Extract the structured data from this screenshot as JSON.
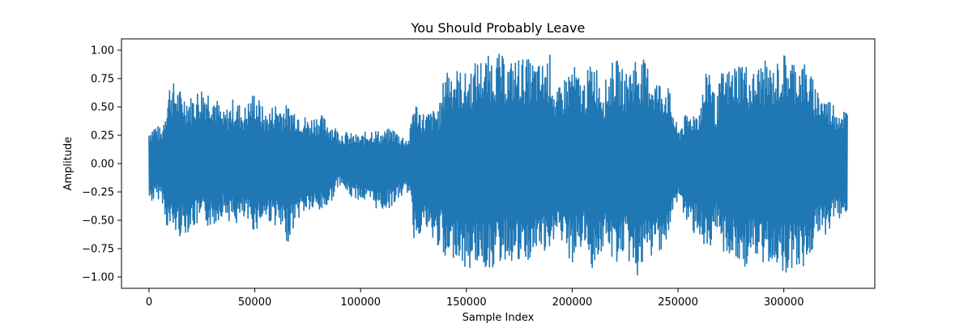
{
  "chart_data": {
    "type": "line",
    "title": "You Should Probably Leave",
    "xlabel": "Sample Index",
    "ylabel": "Amplitude",
    "xlim": [
      -13000,
      343000
    ],
    "ylim": [
      -1.1,
      1.1
    ],
    "x_ticks": [
      0,
      50000,
      100000,
      150000,
      200000,
      250000,
      300000
    ],
    "x_tick_labels": [
      "0",
      "50000",
      "100000",
      "150000",
      "200000",
      "250000",
      "300000"
    ],
    "y_ticks": [
      1.0,
      0.75,
      0.5,
      0.25,
      0.0,
      -0.25,
      -0.5,
      -0.75,
      -1.0
    ],
    "y_tick_labels": [
      "1.00",
      "0.75",
      "0.50",
      "0.25",
      "0.00",
      "−0.25",
      "−0.50",
      "−0.75",
      "−1.00"
    ],
    "grid": false,
    "legend": "none",
    "color": "#1f77b4",
    "series": [
      {
        "x": [
          0,
          3000,
          6000,
          8000,
          10000,
          15000,
          20000,
          25000,
          30000,
          35000,
          40000,
          45000,
          50000,
          55000,
          60000,
          65000,
          70000,
          75000,
          80000,
          85000,
          90000,
          95000,
          100000,
          105000,
          110000,
          115000,
          120000,
          123000,
          125000,
          130000,
          135000,
          138000,
          140000,
          145000,
          150000,
          155000,
          160000,
          165000,
          170000,
          175000,
          180000,
          185000,
          190000,
          192000,
          195000,
          200000,
          205000,
          210000,
          215000,
          220000,
          225000,
          230000,
          235000,
          240000,
          245000,
          250000,
          252000,
          255000,
          260000,
          265000,
          268000,
          270000,
          275000,
          280000,
          285000,
          290000,
          295000,
          300000,
          305000,
          310000,
          315000,
          320000,
          325000,
          330000
        ],
        "y_max": [
          0.32,
          0.36,
          0.3,
          0.55,
          0.75,
          0.65,
          0.6,
          0.7,
          0.67,
          0.45,
          0.58,
          0.5,
          0.66,
          0.45,
          0.55,
          0.52,
          0.5,
          0.4,
          0.45,
          0.38,
          0.3,
          0.27,
          0.25,
          0.32,
          0.28,
          0.32,
          0.25,
          0.23,
          0.58,
          0.45,
          0.48,
          0.55,
          0.9,
          0.85,
          0.8,
          0.92,
          0.95,
          0.98,
          0.9,
          0.95,
          0.92,
          0.88,
          0.98,
          0.6,
          0.72,
          0.9,
          0.72,
          0.95,
          0.7,
          0.95,
          0.8,
          0.97,
          0.9,
          0.75,
          0.72,
          0.3,
          0.4,
          0.45,
          0.5,
          0.95,
          0.5,
          0.8,
          0.85,
          0.95,
          0.8,
          0.92,
          0.85,
          0.98,
          0.93,
          0.9,
          0.7,
          0.6,
          0.52,
          0.48
        ],
        "y_min": [
          -0.35,
          -0.33,
          -0.3,
          -0.55,
          -0.6,
          -0.65,
          -0.58,
          -0.55,
          -0.57,
          -0.45,
          -0.55,
          -0.52,
          -0.6,
          -0.5,
          -0.55,
          -0.72,
          -0.5,
          -0.42,
          -0.45,
          -0.38,
          -0.18,
          -0.3,
          -0.32,
          -0.38,
          -0.42,
          -0.38,
          -0.28,
          -0.25,
          -0.68,
          -0.58,
          -0.75,
          -0.72,
          -0.98,
          -0.8,
          -0.97,
          -0.88,
          -0.95,
          -0.9,
          -0.85,
          -0.92,
          -0.88,
          -0.75,
          -0.95,
          -0.55,
          -0.75,
          -0.9,
          -0.72,
          -0.95,
          -0.75,
          -0.9,
          -0.8,
          -1.02,
          -0.9,
          -0.78,
          -0.72,
          -0.3,
          -0.42,
          -0.6,
          -0.62,
          -0.97,
          -0.58,
          -0.75,
          -0.85,
          -0.95,
          -0.85,
          -0.92,
          -0.85,
          -0.98,
          -0.9,
          -0.95,
          -0.7,
          -0.62,
          -0.5,
          -0.45
        ]
      }
    ]
  }
}
